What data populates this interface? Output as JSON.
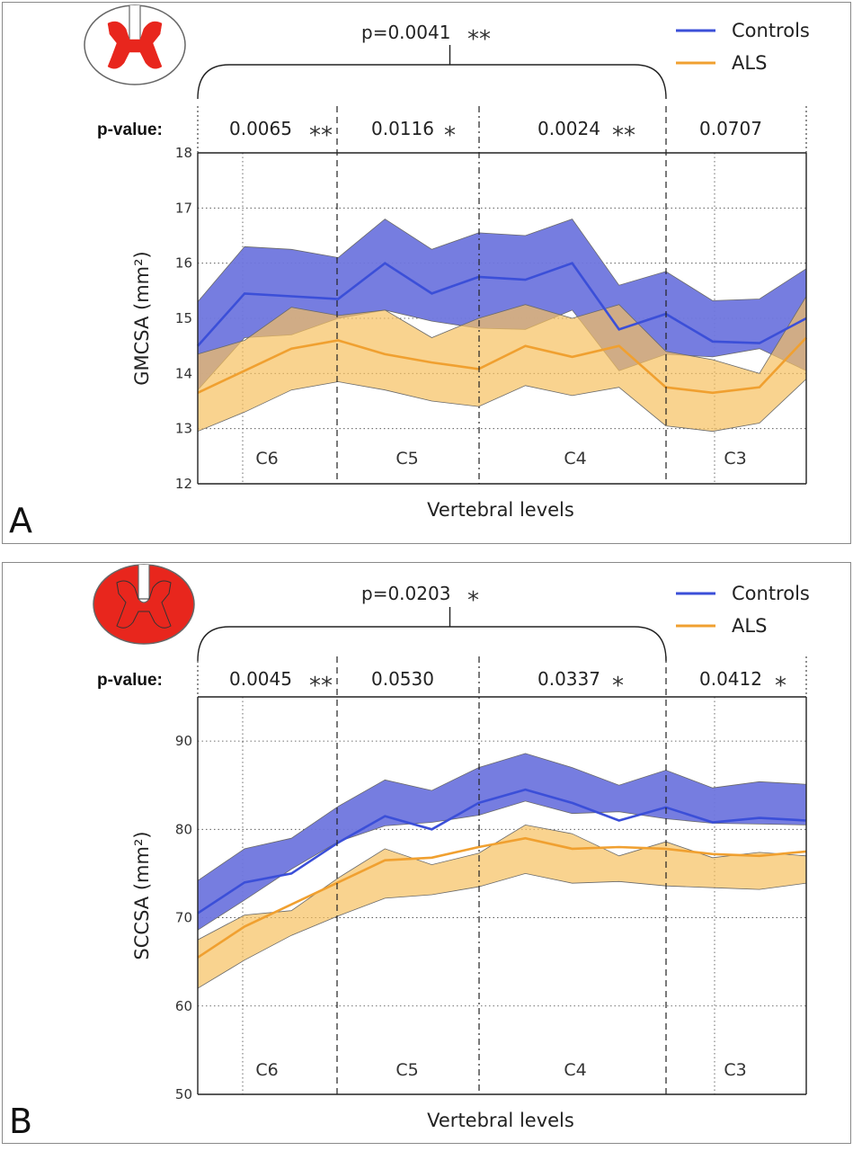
{
  "chart_data": [
    {
      "panel_letter": "A",
      "type": "area",
      "region_icon": "spinal-cord-gray-matter-icon",
      "xlabel": "Vertebral levels",
      "ylabel": "GMCSA (mm²)",
      "ylim": [
        12,
        18
      ],
      "yticks": [
        "12",
        "13",
        "14",
        "15",
        "16",
        "17",
        "18"
      ],
      "x": [
        0,
        1,
        2,
        3,
        4,
        5,
        6,
        7,
        8,
        9,
        10,
        11,
        12,
        13
      ],
      "levels": [
        "C6",
        "C5",
        "C4",
        "C3"
      ],
      "overall_p": "p=0.0041",
      "overall_stars": "**",
      "p_label": "p-value:",
      "pvalues": [
        {
          "level": "C6",
          "value": "0.0065",
          "stars": "**"
        },
        {
          "level": "C5",
          "value": "0.0116",
          "stars": "*"
        },
        {
          "level": "C4",
          "value": "0.0024",
          "stars": "**"
        },
        {
          "level": "C3",
          "value": "0.0707",
          "stars": ""
        }
      ],
      "series": [
        {
          "name": "Controls",
          "color": "#3b4fd8",
          "fill": "#6f76de",
          "values": [
            14.5,
            15.45,
            15.4,
            15.35,
            16.0,
            15.45,
            15.75,
            15.7,
            16.0,
            14.8,
            15.08,
            14.58,
            14.55,
            15.0
          ],
          "upper": [
            15.3,
            16.3,
            16.25,
            16.1,
            16.8,
            16.25,
            16.55,
            16.5,
            16.8,
            15.6,
            15.85,
            15.32,
            15.35,
            15.9
          ],
          "lower": [
            13.7,
            14.65,
            14.7,
            15.0,
            15.15,
            14.95,
            14.82,
            14.8,
            15.15,
            14.05,
            14.35,
            14.3,
            14.45,
            14.05
          ]
        },
        {
          "name": "ALS",
          "color": "#f0a030",
          "fill": "#f6c15f",
          "values": [
            13.65,
            14.05,
            14.45,
            14.6,
            14.35,
            14.2,
            14.08,
            14.5,
            14.3,
            14.5,
            13.75,
            13.65,
            13.75,
            14.65
          ],
          "upper": [
            14.35,
            14.6,
            15.2,
            15.05,
            15.15,
            14.65,
            15.0,
            15.25,
            15.0,
            15.25,
            14.4,
            14.25,
            14.0,
            15.4
          ],
          "lower": [
            12.95,
            13.3,
            13.7,
            13.85,
            13.7,
            13.5,
            13.4,
            13.78,
            13.6,
            13.75,
            13.05,
            12.95,
            13.1,
            13.9
          ]
        }
      ]
    },
    {
      "panel_letter": "B",
      "type": "area",
      "region_icon": "spinal-cord-whole-icon",
      "xlabel": "Vertebral levels",
      "ylabel": "SCCSA (mm²)",
      "ylim": [
        50,
        95
      ],
      "yticks": [
        "50",
        "60",
        "70",
        "80",
        "90"
      ],
      "x": [
        0,
        1,
        2,
        3,
        4,
        5,
        6,
        7,
        8,
        9,
        10,
        11,
        12,
        13
      ],
      "levels": [
        "C6",
        "C5",
        "C4",
        "C3"
      ],
      "overall_p": "p=0.0203",
      "overall_stars": "*",
      "p_label": "p-value:",
      "pvalues": [
        {
          "level": "C6",
          "value": "0.0045",
          "stars": "**"
        },
        {
          "level": "C5",
          "value": "0.0530",
          "stars": ""
        },
        {
          "level": "C4",
          "value": "0.0337",
          "stars": "*"
        },
        {
          "level": "C3",
          "value": "0.0412",
          "stars": "*"
        }
      ],
      "series": [
        {
          "name": "Controls",
          "color": "#3b4fd8",
          "fill": "#6f76de",
          "values": [
            70.5,
            74.0,
            75.0,
            78.5,
            81.5,
            80.0,
            83.0,
            84.5,
            83.0,
            81.0,
            82.5,
            80.8,
            81.3,
            81.0
          ],
          "upper": [
            74.2,
            77.8,
            79.0,
            82.6,
            85.6,
            84.4,
            87.0,
            88.6,
            87.0,
            85.0,
            86.7,
            84.7,
            85.4,
            85.1
          ],
          "lower": [
            68.6,
            72.0,
            75.5,
            78.6,
            80.4,
            80.8,
            81.6,
            83.2,
            81.8,
            82.0,
            81.2,
            80.7,
            80.6,
            80.5
          ]
        },
        {
          "name": "ALS",
          "color": "#f0a030",
          "fill": "#f6c15f",
          "values": [
            65.5,
            69.0,
            71.5,
            74.0,
            76.5,
            76.8,
            78.0,
            79.0,
            77.8,
            78.0,
            77.8,
            77.2,
            77.0,
            77.5
          ],
          "upper": [
            67.5,
            70.3,
            70.8,
            74.5,
            77.8,
            76.0,
            77.3,
            80.5,
            79.5,
            77.0,
            78.6,
            76.8,
            77.4,
            77.0
          ],
          "lower": [
            62.0,
            65.2,
            68.0,
            70.2,
            72.2,
            72.6,
            73.5,
            75.0,
            73.9,
            74.1,
            73.6,
            73.4,
            73.2,
            73.9
          ]
        }
      ]
    }
  ]
}
